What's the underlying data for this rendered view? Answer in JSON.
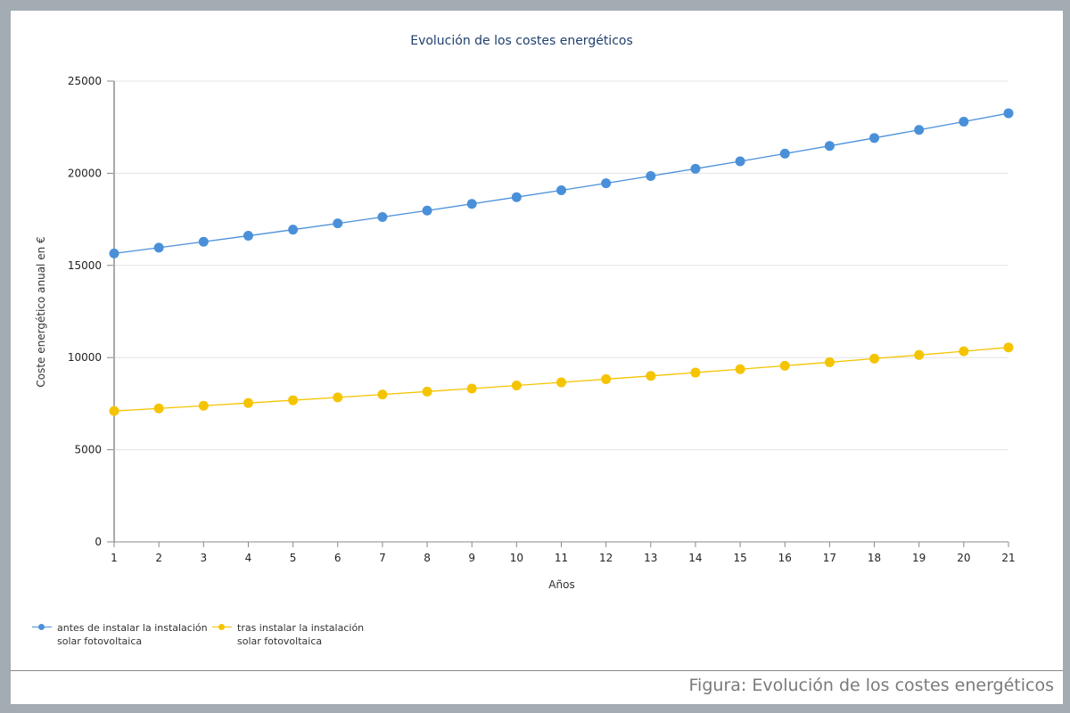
{
  "chart_data": {
    "type": "line",
    "title": "Evolución de los costes energéticos",
    "xlabel": "Años",
    "ylabel": "Coste energético anual en €",
    "x": [
      1,
      2,
      3,
      4,
      5,
      6,
      7,
      8,
      9,
      10,
      11,
      12,
      13,
      14,
      15,
      16,
      17,
      18,
      19,
      20,
      21
    ],
    "ylim": [
      0,
      25000
    ],
    "yticks": [
      0,
      5000,
      10000,
      15000,
      20000,
      25000
    ],
    "grid": true,
    "legend_position": "bottom-left",
    "series": [
      {
        "name": "antes de instalar la instalación solar fotovoltaica",
        "color": "#4a90d9",
        "values": [
          15650,
          15963,
          16282,
          16608,
          16940,
          17279,
          17625,
          17977,
          18337,
          18704,
          19078,
          19459,
          19849,
          20246,
          20650,
          21063,
          21485,
          21914,
          22353,
          22800,
          23256
        ]
      },
      {
        "name": "tras instalar la instalación solar fotovoltaica",
        "color": "#f5c400",
        "values": [
          7100,
          7242,
          7387,
          7535,
          7685,
          7839,
          7996,
          8156,
          8319,
          8485,
          8655,
          8828,
          9004,
          9185,
          9368,
          9556,
          9747,
          9942,
          10140,
          10343,
          10550
        ]
      }
    ]
  },
  "legend": {
    "items": [
      {
        "label": "antes de instalar la instalación solar fotovoltaica"
      },
      {
        "label": "tras instalar la instalación solar fotovoltaica"
      }
    ]
  },
  "caption": "Figura: Evolución de los costes energéticos"
}
